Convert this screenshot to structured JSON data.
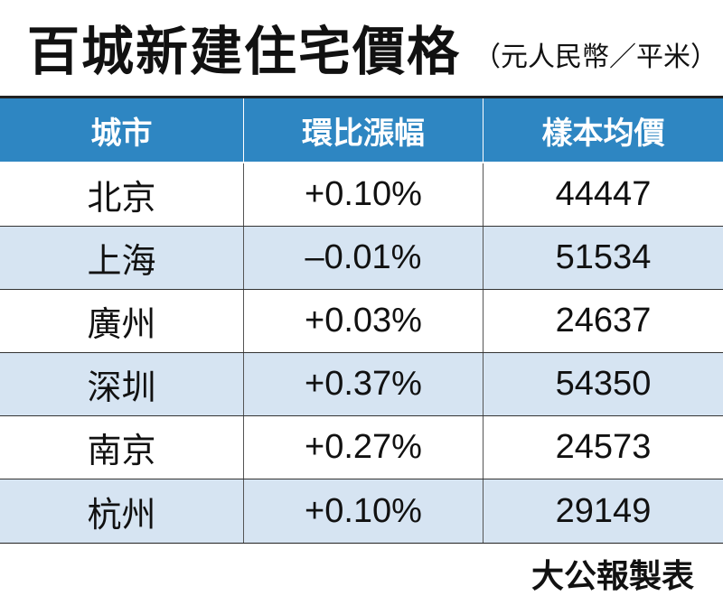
{
  "title": "百城新建住宅價格",
  "unit": "（元人民幣／平米）",
  "credit": "大公報製表",
  "colors": {
    "header_bg": "#2e86c2",
    "alt_row_bg": "#d6e4f2"
  },
  "chart_data": {
    "type": "table",
    "title": "百城新建住宅價格",
    "subtitle": "（元人民幣／平米）",
    "columns": [
      "城市",
      "環比漲幅",
      "樣本均價"
    ],
    "rows": [
      {
        "city": "北京",
        "change": "+0.10%",
        "price": "44447"
      },
      {
        "city": "上海",
        "change": "–0.01%",
        "price": "51534"
      },
      {
        "city": "廣州",
        "change": "+0.03%",
        "price": "24637"
      },
      {
        "city": "深圳",
        "change": "+0.37%",
        "price": "54350"
      },
      {
        "city": "南京",
        "change": "+0.27%",
        "price": "24573"
      },
      {
        "city": "杭州",
        "change": "+0.10%",
        "price": "29149"
      }
    ]
  }
}
